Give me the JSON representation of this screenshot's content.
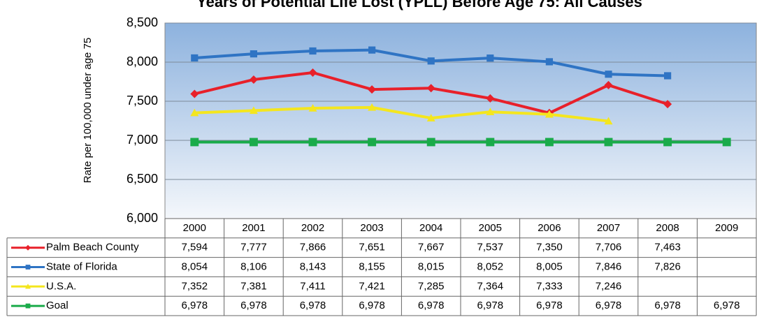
{
  "chart_data": {
    "type": "line",
    "title": "Years of Potential Life Lost (YPLL) Before Age 75: All Causes",
    "y_label": "Rate per 100,000 under age 75",
    "categories": [
      "2000",
      "2001",
      "2002",
      "2003",
      "2004",
      "2005",
      "2006",
      "2007",
      "2008",
      "2009"
    ],
    "series": [
      {
        "name": "Palm Beach County",
        "color": "#e8202a",
        "marker": "diamond",
        "values": [
          7594,
          7777,
          7866,
          7651,
          7667,
          7537,
          7350,
          7706,
          7463,
          null
        ],
        "value_labels": [
          "7,594",
          "7,777",
          "7,866",
          "7,651",
          "7,667",
          "7,537",
          "7,350",
          "7,706",
          "7,463",
          null
        ]
      },
      {
        "name": "State of Florida",
        "color": "#2f74c4",
        "marker": "square",
        "values": [
          8054,
          8106,
          8143,
          8155,
          8015,
          8052,
          8005,
          7846,
          7826,
          null
        ],
        "value_labels": [
          "8,054",
          "8,106",
          "8,143",
          "8,155",
          "8,015",
          "8,052",
          "8,005",
          "7,846",
          "7,826",
          null
        ]
      },
      {
        "name": "U.S.A.",
        "color": "#f4e61e",
        "marker": "triangle",
        "values": [
          7352,
          7381,
          7411,
          7421,
          7285,
          7364,
          7333,
          7246,
          null,
          null
        ],
        "value_labels": [
          "7,352",
          "7,381",
          "7,411",
          "7,421",
          "7,285",
          "7,364",
          "7,333",
          "7,246",
          null,
          null
        ]
      },
      {
        "name": "Goal",
        "color": "#1aab4a",
        "marker": "square",
        "values": [
          6978,
          6978,
          6978,
          6978,
          6978,
          6978,
          6978,
          6978,
          6978,
          6978
        ],
        "value_labels": [
          "6,978",
          "6,978",
          "6,978",
          "6,978",
          "6,978",
          "6,978",
          "6,978",
          "6,978",
          "6,978",
          "6,978"
        ]
      }
    ],
    "ylim": [
      6000,
      8500
    ],
    "yticks": [
      {
        "value": 6000,
        "label": "6,000"
      },
      {
        "value": 6500,
        "label": "6,500"
      },
      {
        "value": 7000,
        "label": "7,000"
      },
      {
        "value": 7500,
        "label": "7,500"
      },
      {
        "value": 8000,
        "label": "8,000"
      },
      {
        "value": 8500,
        "label": "8,500"
      }
    ],
    "grid": true
  }
}
